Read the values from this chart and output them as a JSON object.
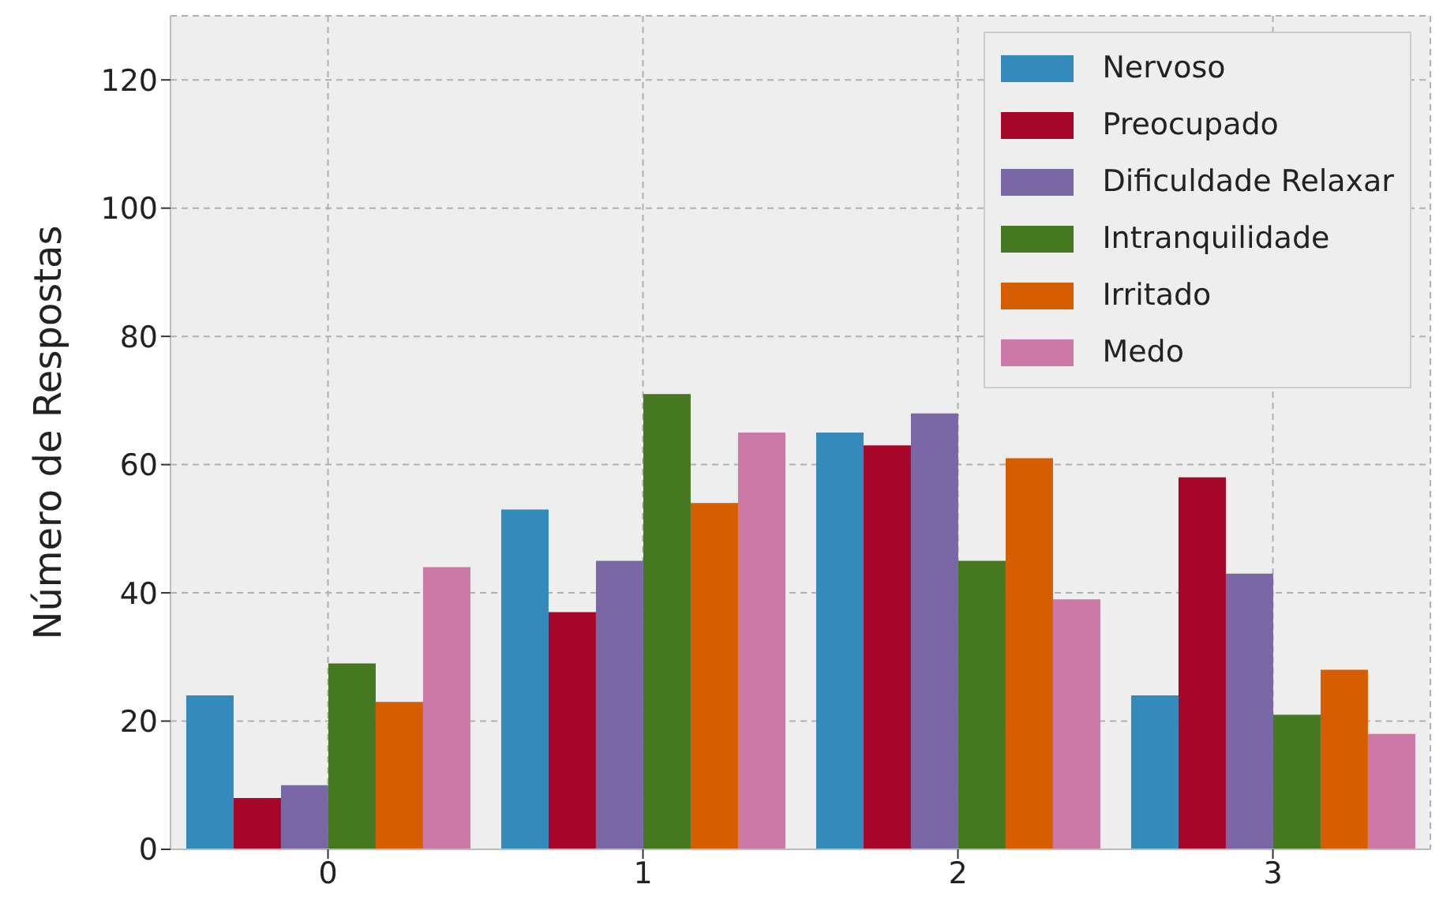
{
  "chart_data": {
    "type": "bar",
    "ylabel": "Número de Respostas",
    "categories": [
      "0",
      "1",
      "2",
      "3"
    ],
    "series": [
      {
        "name": "Nervoso",
        "color": "#348abd",
        "values": [
          24,
          53,
          65,
          24
        ]
      },
      {
        "name": "Preocupado",
        "color": "#a60628",
        "values": [
          8,
          37,
          63,
          58
        ]
      },
      {
        "name": "Dificuldade Relaxar",
        "color": "#7a68a6",
        "values": [
          10,
          45,
          68,
          43
        ]
      },
      {
        "name": "Intranquilidade",
        "color": "#467821",
        "values": [
          29,
          71,
          45,
          21
        ]
      },
      {
        "name": "Irritado",
        "color": "#d55e00",
        "values": [
          23,
          54,
          61,
          28
        ]
      },
      {
        "name": "Medo",
        "color": "#cc79a7",
        "values": [
          44,
          65,
          39,
          18
        ]
      }
    ],
    "ylim": [
      0,
      130
    ],
    "yticks": [
      0,
      20,
      40,
      60,
      80,
      100,
      120
    ],
    "grid": true,
    "legend": "top right"
  }
}
